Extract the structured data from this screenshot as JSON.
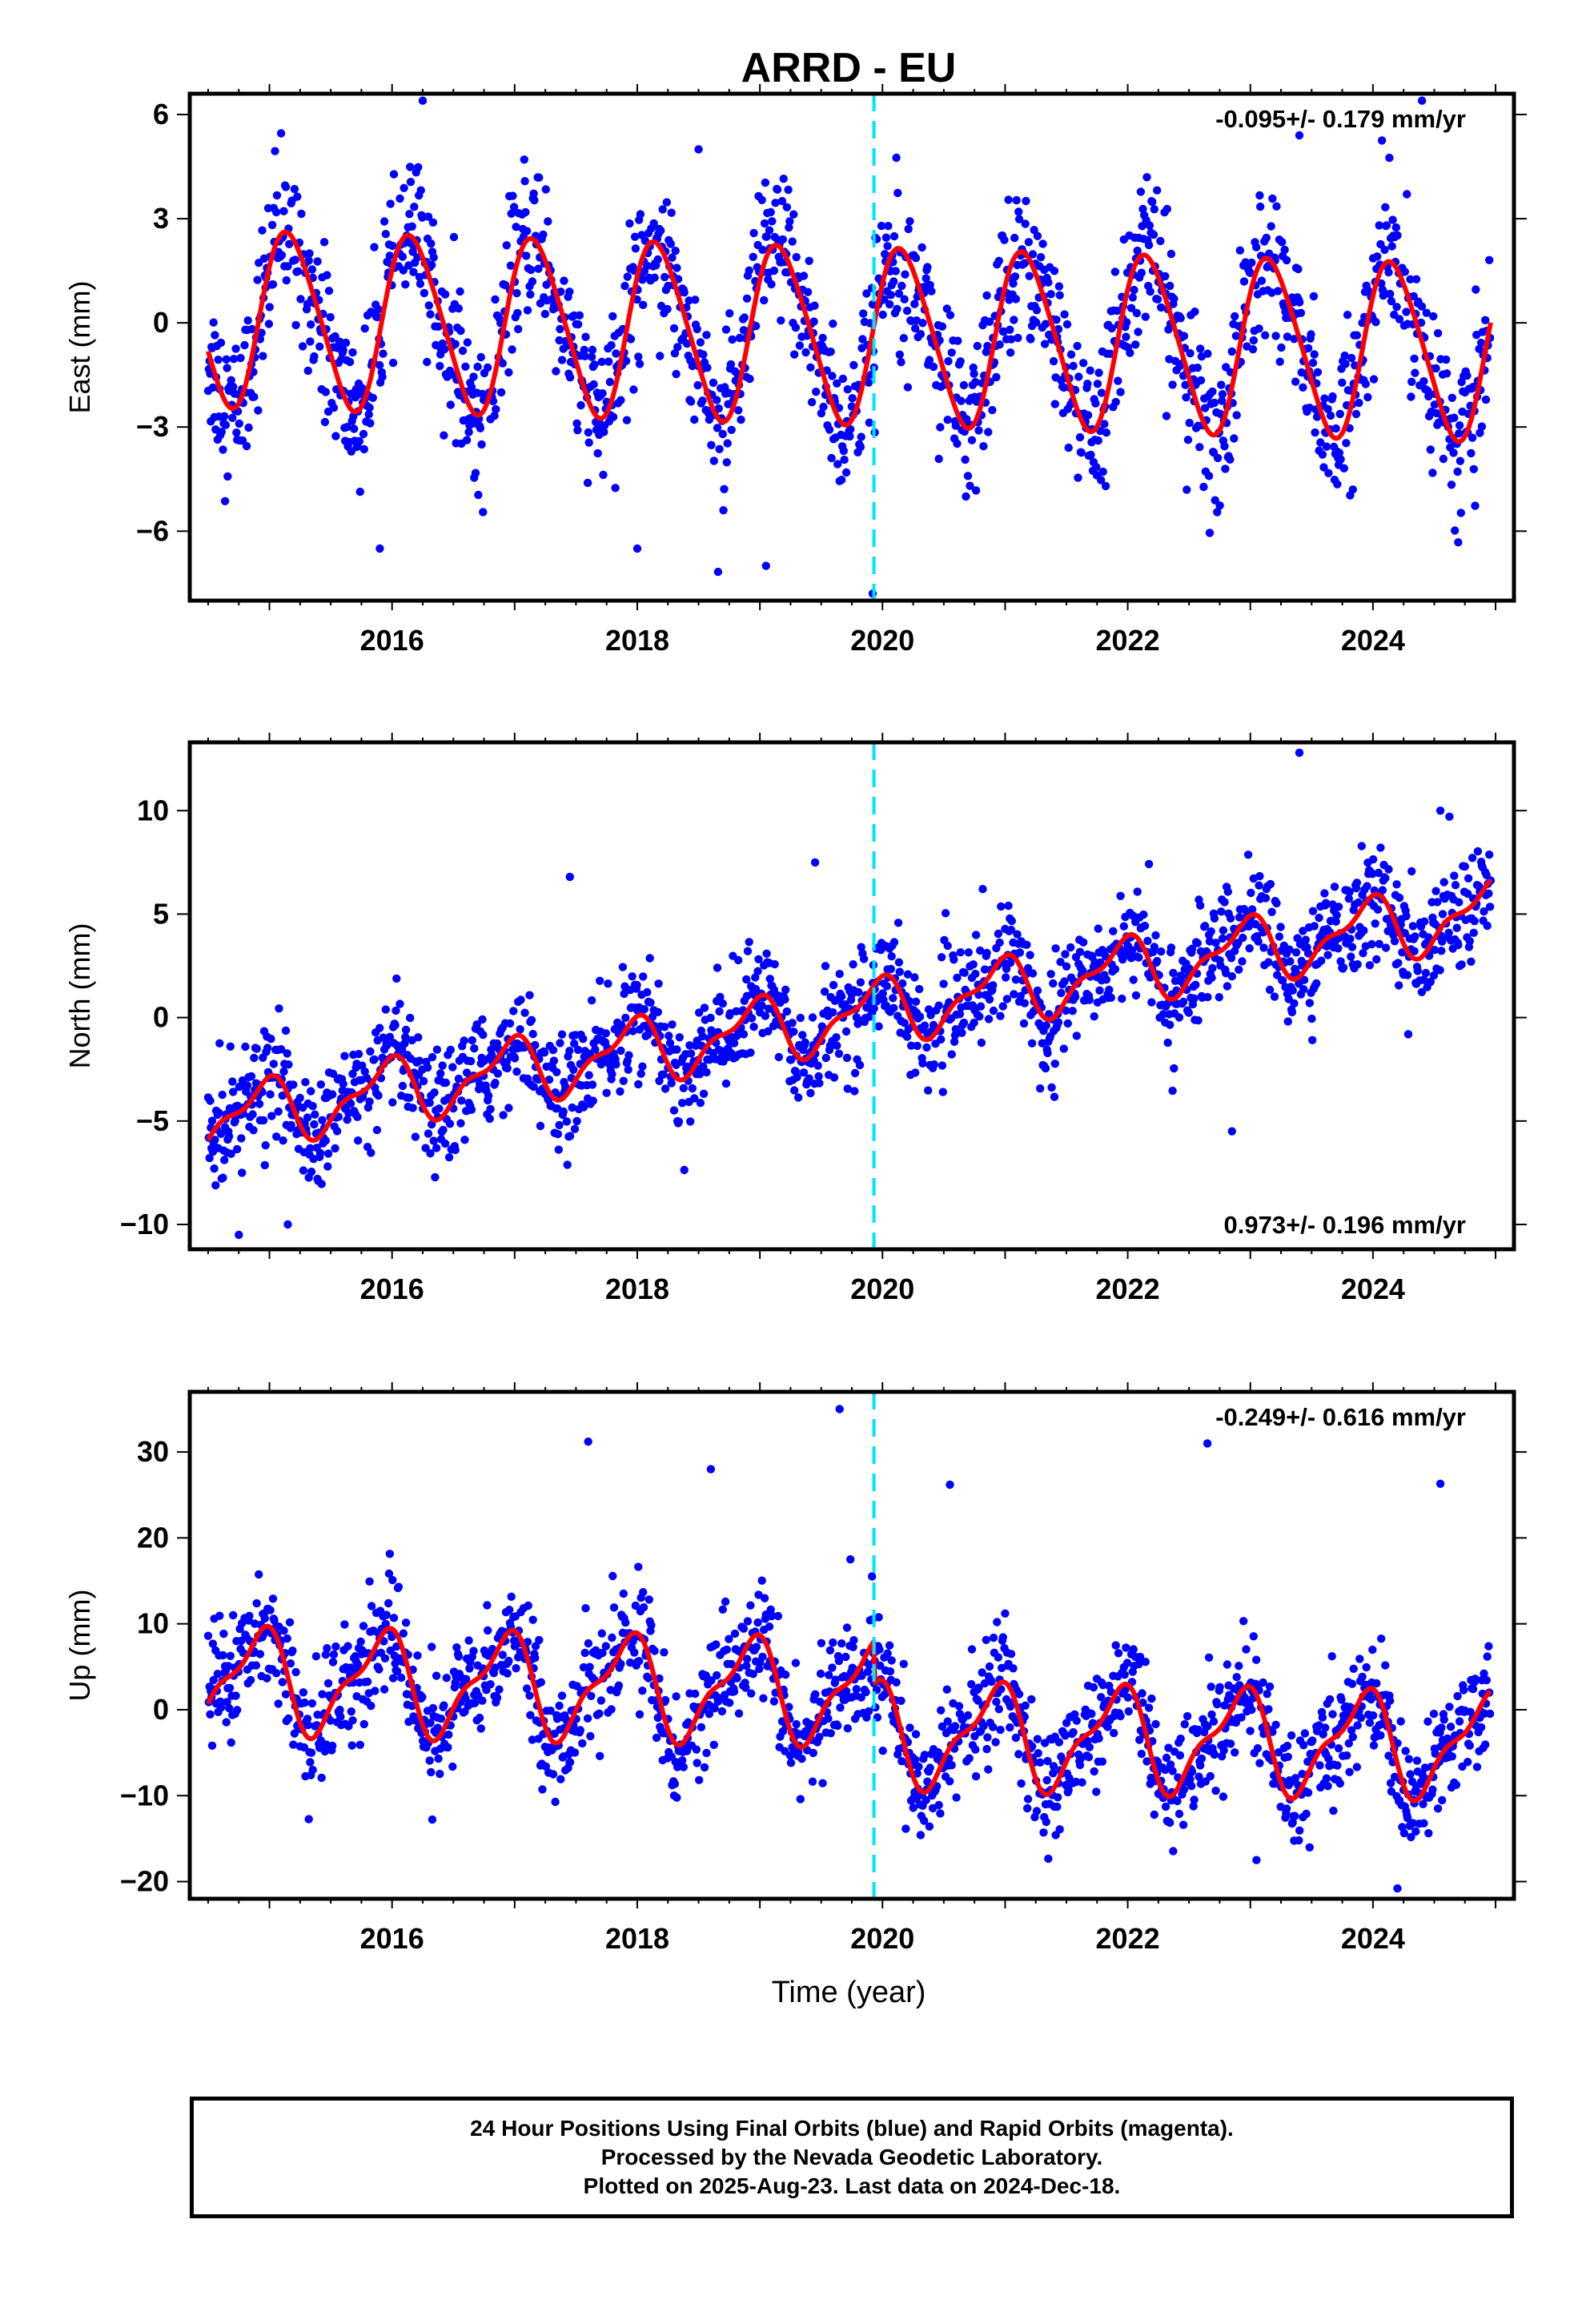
{
  "title": "ARRD - EU",
  "colors": {
    "points": "#0000ff",
    "model": "#ff0000",
    "event_line": "#00e5ff",
    "frame": "#000000"
  },
  "xlabel": "Time (year)",
  "footer": {
    "line1": "24 Hour Positions Using Final Orbits (blue) and Rapid Orbits (magenta).",
    "line2": "Processed by the Nevada Geodetic Laboratory.",
    "line3": "Plotted on 2025-Aug-23. Last data on 2024-Dec-18."
  },
  "chart_data": [
    {
      "type": "scatter",
      "component": "East",
      "ylabel": "East (mm)",
      "rate_label": "-0.095+/- 0.179 mm/yr",
      "rate_position": "top-right",
      "xlim": [
        2014.35,
        2025.15
      ],
      "ylim": [
        -8,
        6.6
      ],
      "x_ticks": [
        2016,
        2018,
        2020,
        2022,
        2024
      ],
      "y_ticks": [
        -6,
        -3,
        0,
        3,
        6
      ],
      "y_tick_labels": [
        "−6",
        "−3",
        "0",
        "3",
        "6"
      ],
      "event_line_x": 2019.93,
      "data_range": [
        2014.5,
        2024.96
      ],
      "model": {
        "offset": 0.15,
        "rate_mm_yr": -0.095,
        "annual_amp": 2.5,
        "annual_phase": 1.05,
        "semiannual_amp": 0.3,
        "semiannual_phase": 0.4,
        "step_at_event": 0.0
      },
      "scatter_sigma": 1.1,
      "outliers": [
        [
          2016.25,
          6.4
        ],
        [
          2019.92,
          -7.8
        ],
        [
          2019.05,
          -7.0
        ],
        [
          2015.9,
          -6.5
        ],
        [
          2018.0,
          -6.5
        ],
        [
          2024.4,
          6.4
        ],
        [
          2023.4,
          5.4
        ],
        [
          2018.5,
          5.0
        ]
      ],
      "grid": false,
      "legend": "none"
    },
    {
      "type": "scatter",
      "component": "North",
      "ylabel": "North (mm)",
      "rate_label": "0.973+/- 0.196 mm/yr",
      "rate_position": "bottom-right",
      "xlim": [
        2014.35,
        2025.15
      ],
      "ylim": [
        -11.2,
        13.3
      ],
      "x_ticks": [
        2016,
        2018,
        2020,
        2022,
        2024
      ],
      "y_ticks": [
        -10,
        -5,
        0,
        5,
        10
      ],
      "y_tick_labels": [
        "−10",
        "−5",
        "0",
        "5",
        "10"
      ],
      "event_line_x": 2019.93,
      "data_range": [
        2014.5,
        2024.96
      ],
      "model": {
        "offset": -5.0,
        "rate_mm_yr": 0.973,
        "annual_amp": 1.4,
        "annual_phase": -0.4,
        "semiannual_amp": 0.6,
        "semiannual_phase": 0.9,
        "step_at_event": 0.0
      },
      "scatter_sigma": 1.3,
      "outliers": [
        [
          2023.4,
          12.8
        ],
        [
          2024.55,
          10.0
        ],
        [
          2014.75,
          -10.5
        ],
        [
          2015.15,
          -10.0
        ],
        [
          2017.45,
          6.8
        ],
        [
          2019.45,
          7.5
        ],
        [
          2022.85,
          -5.5
        ]
      ],
      "grid": false,
      "legend": "none"
    },
    {
      "type": "scatter",
      "component": "Up",
      "ylabel": "Up (mm)",
      "rate_label": "-0.249+/- 0.616 mm/yr",
      "rate_position": "top-right",
      "xlim": [
        2014.35,
        2025.15
      ],
      "ylim": [
        -22,
        37
      ],
      "x_ticks": [
        2016,
        2018,
        2020,
        2022,
        2024
      ],
      "y_ticks": [
        -20,
        -10,
        0,
        10,
        20,
        30
      ],
      "y_tick_labels": [
        "−20",
        "−10",
        "0",
        "10",
        "20",
        "30"
      ],
      "event_line_x": 2019.93,
      "data_range": [
        2014.5,
        2024.96
      ],
      "model": {
        "offset": 3.5,
        "rate_mm_yr": -0.249,
        "annual_amp": 5.5,
        "annual_phase": -0.6,
        "semiannual_amp": 2.0,
        "semiannual_phase": 0.5,
        "step_at_event": -5.0
      },
      "scatter_sigma": 3.3,
      "outliers": [
        [
          2019.65,
          35.0
        ],
        [
          2017.6,
          31.2
        ],
        [
          2022.65,
          31.0
        ],
        [
          2018.6,
          28.0
        ],
        [
          2024.55,
          26.3
        ],
        [
          2020.55,
          26.2
        ],
        [
          2024.2,
          -20.8
        ],
        [
          2023.05,
          -17.5
        ]
      ],
      "grid": false,
      "legend": "none"
    }
  ]
}
